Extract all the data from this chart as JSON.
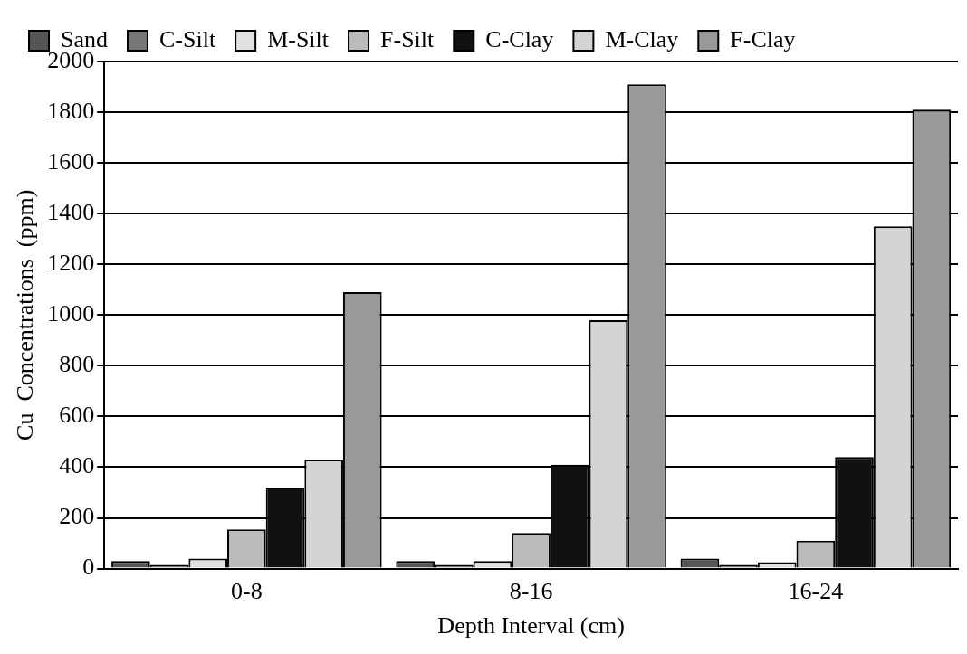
{
  "chart_data": {
    "type": "bar",
    "xlabel": "Depth Interval (cm)",
    "ylabel": "Cu  Concentrations  (ppm)",
    "categories": [
      "0-8",
      "8-16",
      "16-24"
    ],
    "series": [
      {
        "name": "Sand",
        "color": "#555555",
        "values": [
          30,
          30,
          40
        ]
      },
      {
        "name": "C-Silt",
        "color": "#777777",
        "values": [
          15,
          15,
          15
        ]
      },
      {
        "name": "M-Silt",
        "color": "#e0e0e0",
        "values": [
          40,
          30,
          25
        ]
      },
      {
        "name": "F-Silt",
        "color": "#bbbbbb",
        "values": [
          155,
          140,
          110
        ]
      },
      {
        "name": "C-Clay",
        "color": "#111111",
        "values": [
          320,
          410,
          440
        ]
      },
      {
        "name": "M-Clay",
        "color": "#d4d4d4",
        "values": [
          430,
          980,
          1350
        ]
      },
      {
        "name": "F-Clay",
        "color": "#999999",
        "values": [
          1090,
          1910,
          1810
        ]
      }
    ],
    "ylim": [
      0,
      2000
    ],
    "yticks": [
      0,
      200,
      400,
      600,
      800,
      1000,
      1200,
      1400,
      1600,
      1800,
      2000
    ],
    "grid": "y",
    "legend": "top"
  }
}
